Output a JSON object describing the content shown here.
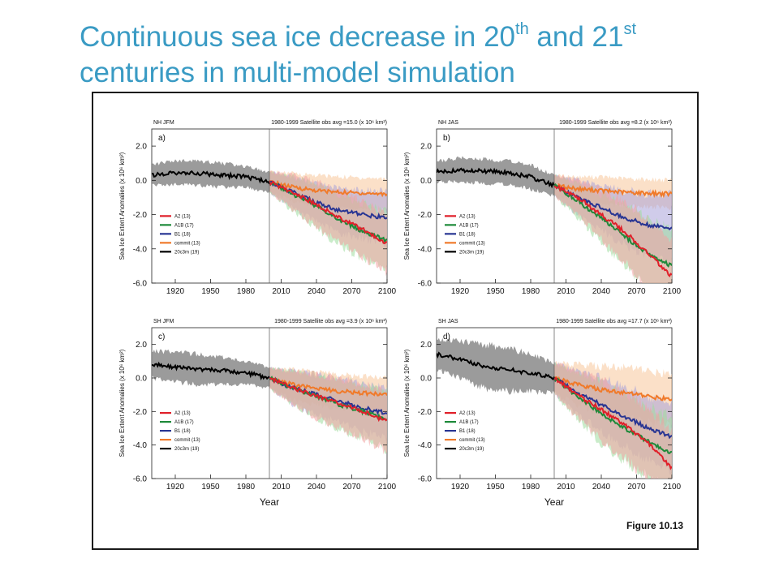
{
  "slide": {
    "title_part1": "Continuous sea ice decrease in 20",
    "title_sup1": "th",
    "title_part2": " and 21",
    "title_sup2": "st",
    "title_line2": "centuries in multi-model simulation"
  },
  "figure_label": "Figure 10.13",
  "colors": {
    "A2": "#e0202a",
    "A1B": "#1e8a3a",
    "B1": "#283593",
    "commit": "#f07a2a",
    "20c3m": "#000000",
    "band_20c3m": "#8a8a8a",
    "band_A2": "#f2a3a3",
    "band_A1B": "#9fdc9f",
    "band_B1": "#a9a3d8",
    "band_commit": "#f8c79a",
    "title": "#3a9bc4"
  },
  "chart_data": [
    {
      "type": "line",
      "panel_letter": "a)",
      "region": "NH JFM",
      "obs_note": "1980-1999 Satellite obs avg =15.0",
      "obs_unit": "(x 10⁶ km²)",
      "ylabel": "Sea Ice Extent Anomalies",
      "ylabel_unit": "(x 10⁶ km²)",
      "xlabel": "",
      "ylim": [
        -6,
        3
      ],
      "xlim": [
        1900,
        2100
      ],
      "yticks": [
        "2.0",
        "0.0",
        "-2.0",
        "-4.0",
        "-6.0"
      ],
      "xticks": [
        "1920",
        "1950",
        "1980",
        "2010",
        "2040",
        "2070",
        "2100"
      ],
      "legend": [
        "A2 (13)",
        "A1B (17)",
        "B1 (18)",
        "commit (13)",
        "20c3m (19)"
      ],
      "legend_position": "lower-left",
      "series": [
        {
          "name": "20c3m",
          "x": [
            1900,
            1920,
            1940,
            1960,
            1980,
            2000
          ],
          "values": [
            0.3,
            0.45,
            0.4,
            0.3,
            0.2,
            -0.1
          ],
          "spread": [
            0.6,
            0.7,
            0.7,
            0.7,
            0.6,
            0.6
          ]
        },
        {
          "name": "commit",
          "x": [
            2000,
            2020,
            2040,
            2060,
            2080,
            2100
          ],
          "values": [
            -0.1,
            -0.4,
            -0.6,
            -0.7,
            -0.75,
            -0.8
          ],
          "spread": [
            0.6,
            0.8,
            0.9,
            0.9,
            0.9,
            0.9
          ]
        },
        {
          "name": "B1",
          "x": [
            2000,
            2020,
            2040,
            2060,
            2080,
            2100
          ],
          "values": [
            -0.1,
            -0.7,
            -1.3,
            -1.8,
            -2.0,
            -2.2
          ],
          "spread": [
            0.6,
            0.9,
            1.1,
            1.3,
            1.4,
            1.5
          ]
        },
        {
          "name": "A1B",
          "x": [
            2000,
            2020,
            2040,
            2060,
            2080,
            2100
          ],
          "values": [
            -0.1,
            -0.8,
            -1.5,
            -2.3,
            -3.0,
            -3.5
          ],
          "spread": [
            0.6,
            1.0,
            1.3,
            1.5,
            1.6,
            1.7
          ]
        },
        {
          "name": "A2",
          "x": [
            2000,
            2020,
            2040,
            2060,
            2080,
            2100
          ],
          "values": [
            -0.1,
            -0.7,
            -1.4,
            -2.2,
            -2.9,
            -3.7
          ],
          "spread": [
            0.6,
            1.0,
            1.3,
            1.5,
            1.6,
            1.7
          ]
        }
      ]
    },
    {
      "type": "line",
      "panel_letter": "b)",
      "region": "NH JAS",
      "obs_note": "1980-1999 Satellite obs avg =8.2",
      "obs_unit": "(x 10⁶ km²)",
      "ylabel": "Sea Ice Extent Anomalies",
      "ylabel_unit": "(x 10⁶ km²)",
      "xlabel": "",
      "ylim": [
        -6,
        3
      ],
      "xlim": [
        1900,
        2100
      ],
      "yticks": [
        "2.0",
        "0.0",
        "-2.0",
        "-4.0",
        "-6.0"
      ],
      "xticks": [
        "1920",
        "1950",
        "1980",
        "2010",
        "2040",
        "2070",
        "2100"
      ],
      "legend": [
        "A2 (13)",
        "A1B (17)",
        "B1 (18)",
        "commit (13)",
        "20c3m (19)"
      ],
      "legend_position": "lower-left",
      "series": [
        {
          "name": "20c3m",
          "x": [
            1900,
            1920,
            1940,
            1960,
            1980,
            2000
          ],
          "values": [
            0.5,
            0.6,
            0.55,
            0.45,
            0.2,
            -0.3
          ],
          "spread": [
            0.6,
            0.7,
            0.7,
            0.7,
            0.7,
            0.6
          ]
        },
        {
          "name": "commit",
          "x": [
            2000,
            2020,
            2040,
            2060,
            2080,
            2100
          ],
          "values": [
            -0.3,
            -0.5,
            -0.6,
            -0.7,
            -0.75,
            -0.8
          ],
          "spread": [
            0.6,
            0.7,
            0.8,
            0.8,
            0.8,
            0.8
          ]
        },
        {
          "name": "B1",
          "x": [
            2000,
            2020,
            2040,
            2060,
            2080,
            2100
          ],
          "values": [
            -0.3,
            -1.0,
            -1.6,
            -2.2,
            -2.6,
            -2.8
          ],
          "spread": [
            0.6,
            1.0,
            1.3,
            1.6,
            1.8,
            2.0
          ]
        },
        {
          "name": "A1B",
          "x": [
            2000,
            2020,
            2040,
            2060,
            2080,
            2100
          ],
          "values": [
            -0.3,
            -1.2,
            -2.2,
            -3.3,
            -4.3,
            -5.0
          ],
          "spread": [
            0.6,
            1.0,
            1.4,
            1.8,
            2.0,
            2.1
          ]
        },
        {
          "name": "A2",
          "x": [
            2000,
            2020,
            2040,
            2060,
            2080,
            2100
          ],
          "values": [
            -0.3,
            -1.0,
            -2.0,
            -3.0,
            -4.3,
            -5.6
          ],
          "spread": [
            0.6,
            1.0,
            1.4,
            1.8,
            2.0,
            2.1
          ]
        }
      ]
    },
    {
      "type": "line",
      "panel_letter": "c)",
      "region": "SH JFM",
      "obs_note": "1980-1999 Satellite obs avg =3.9",
      "obs_unit": "(x 10⁶ km²)",
      "ylabel": "Sea Ice Extent Anomalies",
      "ylabel_unit": "(x 10⁶ km²)",
      "xlabel": "Year",
      "ylim": [
        -6,
        3
      ],
      "xlim": [
        1900,
        2100
      ],
      "yticks": [
        "2.0",
        "0.0",
        "-2.0",
        "-4.0",
        "-6.0"
      ],
      "xticks": [
        "1920",
        "1950",
        "1980",
        "2010",
        "2040",
        "2070",
        "2100"
      ],
      "legend": [
        "A2 (13)",
        "A1B (17)",
        "B1 (18)",
        "commit (13)",
        "20c3m (19)"
      ],
      "legend_position": "lower-left",
      "series": [
        {
          "name": "20c3m",
          "x": [
            1900,
            1920,
            1940,
            1960,
            1980,
            2000
          ],
          "values": [
            0.8,
            0.65,
            0.5,
            0.45,
            0.3,
            0.0
          ],
          "spread": [
            0.8,
            0.9,
            0.9,
            0.8,
            0.7,
            0.6
          ]
        },
        {
          "name": "commit",
          "x": [
            2000,
            2020,
            2040,
            2060,
            2080,
            2100
          ],
          "values": [
            0.0,
            -0.4,
            -0.6,
            -0.8,
            -0.9,
            -1.0
          ],
          "spread": [
            0.6,
            0.9,
            1.0,
            1.0,
            1.0,
            1.0
          ]
        },
        {
          "name": "B1",
          "x": [
            2000,
            2020,
            2040,
            2060,
            2080,
            2100
          ],
          "values": [
            0.0,
            -0.6,
            -1.0,
            -1.4,
            -1.8,
            -2.1
          ],
          "spread": [
            0.6,
            1.0,
            1.2,
            1.3,
            1.4,
            1.5
          ]
        },
        {
          "name": "A1B",
          "x": [
            2000,
            2020,
            2040,
            2060,
            2080,
            2100
          ],
          "values": [
            0.0,
            -0.6,
            -1.1,
            -1.6,
            -2.0,
            -2.5
          ],
          "spread": [
            0.6,
            1.0,
            1.3,
            1.5,
            1.6,
            1.8
          ]
        },
        {
          "name": "A2",
          "x": [
            2000,
            2020,
            2040,
            2060,
            2080,
            2100
          ],
          "values": [
            0.0,
            -0.6,
            -1.1,
            -1.5,
            -2.0,
            -2.6
          ],
          "spread": [
            0.6,
            1.0,
            1.3,
            1.5,
            1.6,
            1.8
          ]
        }
      ]
    },
    {
      "type": "line",
      "panel_letter": "d)",
      "region": "SH JAS",
      "obs_note": "1980-1999 Satellite obs avg =17.7",
      "obs_unit": "(x 10⁶ km²)",
      "ylabel": "Sea Ice Extent Anomalies",
      "ylabel_unit": "(x 10⁶ km²)",
      "xlabel": "Year",
      "ylim": [
        -6,
        3
      ],
      "xlim": [
        1900,
        2100
      ],
      "yticks": [
        "2.0",
        "0.0",
        "-2.0",
        "-4.0",
        "-6.0"
      ],
      "xticks": [
        "1920",
        "1950",
        "1980",
        "2010",
        "2040",
        "2070",
        "2100"
      ],
      "legend": [
        "A2 (13)",
        "A1B (17)",
        "B1 (18)",
        "commit (13)",
        "20c3m (19)"
      ],
      "legend_position": "lower-left",
      "series": [
        {
          "name": "20c3m",
          "x": [
            1900,
            1920,
            1940,
            1960,
            1980,
            2000
          ],
          "values": [
            1.4,
            1.1,
            0.7,
            0.5,
            0.3,
            0.0
          ],
          "spread": [
            0.9,
            1.1,
            1.3,
            1.3,
            1.1,
            0.9
          ]
        },
        {
          "name": "commit",
          "x": [
            2000,
            2020,
            2040,
            2060,
            2080,
            2100
          ],
          "values": [
            0.0,
            -0.4,
            -0.7,
            -0.9,
            -1.1,
            -1.3
          ],
          "spread": [
            0.9,
            1.2,
            1.4,
            1.5,
            1.5,
            1.5
          ]
        },
        {
          "name": "B1",
          "x": [
            2000,
            2020,
            2040,
            2060,
            2080,
            2100
          ],
          "values": [
            0.0,
            -0.9,
            -1.6,
            -2.3,
            -3.0,
            -3.5
          ],
          "spread": [
            0.9,
            1.3,
            1.6,
            1.8,
            1.9,
            2.0
          ]
        },
        {
          "name": "A1B",
          "x": [
            2000,
            2020,
            2040,
            2060,
            2080,
            2100
          ],
          "values": [
            0.0,
            -1.1,
            -2.1,
            -3.0,
            -3.8,
            -4.5
          ],
          "spread": [
            0.9,
            1.4,
            1.8,
            2.0,
            2.1,
            2.2
          ]
        },
        {
          "name": "A2",
          "x": [
            2000,
            2020,
            2040,
            2060,
            2080,
            2100
          ],
          "values": [
            0.0,
            -1.0,
            -1.9,
            -2.8,
            -3.9,
            -5.4
          ],
          "spread": [
            0.9,
            1.4,
            1.8,
            2.0,
            2.1,
            2.2
          ]
        }
      ]
    }
  ]
}
